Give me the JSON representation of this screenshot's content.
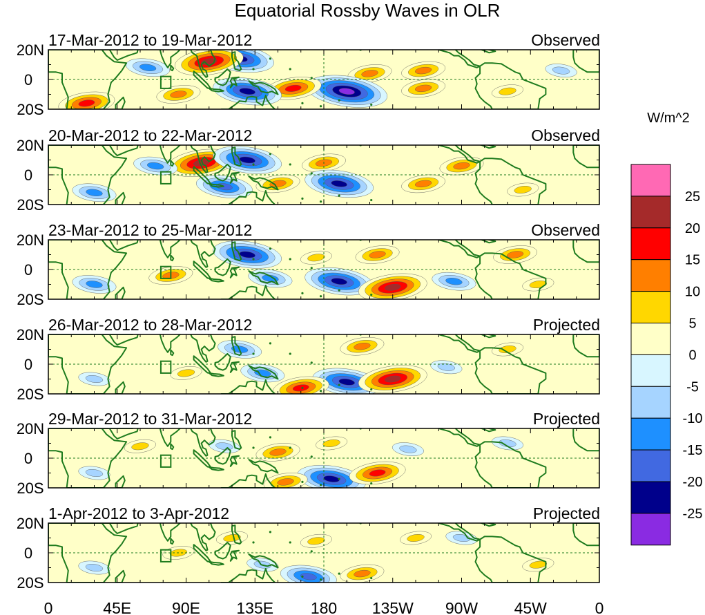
{
  "chart_data": {
    "type": "heatmap",
    "title": "Equatorial Rossby Waves in OLR",
    "units_label": "W/m^2",
    "x_ticks": [
      "0",
      "45E",
      "90E",
      "135E",
      "180",
      "135W",
      "90W",
      "45W",
      "0"
    ],
    "y_ticks": [
      "20N",
      "0",
      "20S"
    ],
    "colorbar": {
      "tick_labels": [
        "25",
        "20",
        "15",
        "10",
        "5",
        "0",
        "-5",
        "-10",
        "-15",
        "-20",
        "-25"
      ],
      "colors": [
        "#ff69b4",
        "#a52a2a",
        "#ff0000",
        "#ff7f00",
        "#ffd700",
        "#ffffc8",
        "#d8f6ff",
        "#a6d4ff",
        "#1e90ff",
        "#4169e1",
        "#00008b",
        "#8a2be2"
      ]
    },
    "panels": [
      {
        "date_range": "17-Mar-2012 to 19-Mar-2012",
        "status": "Observed",
        "anomalies": [
          {
            "lon": 125,
            "lat": 14,
            "value": -20
          },
          {
            "lon": 105,
            "lat": 12,
            "value": 20
          },
          {
            "lon": 210,
            "lat": 4,
            "value": 10
          },
          {
            "lon": 245,
            "lat": 6,
            "value": 10
          },
          {
            "lon": 195,
            "lat": -8,
            "value": -25
          },
          {
            "lon": 160,
            "lat": -6,
            "value": 15
          },
          {
            "lon": 245,
            "lat": -6,
            "value": 10
          },
          {
            "lon": 130,
            "lat": -8,
            "value": -20
          },
          {
            "lon": 65,
            "lat": 8,
            "value": -10
          },
          {
            "lon": 25,
            "lat": -16,
            "value": 15
          },
          {
            "lon": 85,
            "lat": -10,
            "value": 10
          },
          {
            "lon": 300,
            "lat": -8,
            "value": 5
          },
          {
            "lon": 335,
            "lat": 6,
            "value": -5
          }
        ]
      },
      {
        "date_range": "20-Mar-2012 to 22-Mar-2012",
        "status": "Observed",
        "anomalies": [
          {
            "lon": 100,
            "lat": 8,
            "value": 20
          },
          {
            "lon": 130,
            "lat": 10,
            "value": -20
          },
          {
            "lon": 180,
            "lat": 8,
            "value": 10
          },
          {
            "lon": 270,
            "lat": 6,
            "value": 10
          },
          {
            "lon": 190,
            "lat": -6,
            "value": -20
          },
          {
            "lon": 245,
            "lat": -6,
            "value": 10
          },
          {
            "lon": 115,
            "lat": -8,
            "value": -15
          },
          {
            "lon": 70,
            "lat": 6,
            "value": -10
          },
          {
            "lon": 30,
            "lat": -12,
            "value": -10
          },
          {
            "lon": 150,
            "lat": -6,
            "value": 10
          },
          {
            "lon": 310,
            "lat": -10,
            "value": 5
          }
        ]
      },
      {
        "date_range": "23-Mar-2012 to 25-Mar-2012",
        "status": "Observed",
        "anomalies": [
          {
            "lon": 130,
            "lat": 10,
            "value": -20
          },
          {
            "lon": 175,
            "lat": 8,
            "value": 5
          },
          {
            "lon": 215,
            "lat": 10,
            "value": 10
          },
          {
            "lon": 305,
            "lat": 10,
            "value": 10
          },
          {
            "lon": 190,
            "lat": -8,
            "value": -20
          },
          {
            "lon": 225,
            "lat": -12,
            "value": 20
          },
          {
            "lon": 145,
            "lat": -6,
            "value": -10
          },
          {
            "lon": 80,
            "lat": -4,
            "value": 10
          },
          {
            "lon": 30,
            "lat": -10,
            "value": -10
          },
          {
            "lon": 265,
            "lat": -8,
            "value": -10
          },
          {
            "lon": 320,
            "lat": -10,
            "value": 5
          }
        ]
      },
      {
        "date_range": "26-Mar-2012 to 28-Mar-2012",
        "status": "Projected",
        "anomalies": [
          {
            "lon": 195,
            "lat": -12,
            "value": -20
          },
          {
            "lon": 225,
            "lat": -10,
            "value": 20
          },
          {
            "lon": 165,
            "lat": -16,
            "value": 15
          },
          {
            "lon": 205,
            "lat": 12,
            "value": 10
          },
          {
            "lon": 125,
            "lat": 10,
            "value": -10
          },
          {
            "lon": 300,
            "lat": 10,
            "value": 5
          },
          {
            "lon": 140,
            "lat": -6,
            "value": -10
          },
          {
            "lon": 30,
            "lat": -10,
            "value": -5
          },
          {
            "lon": 90,
            "lat": -6,
            "value": 5
          },
          {
            "lon": 260,
            "lat": -2,
            "value": -5
          }
        ]
      },
      {
        "date_range": "29-Mar-2012 to 31-Mar-2012",
        "status": "Projected",
        "anomalies": [
          {
            "lon": 185,
            "lat": -14,
            "value": -20
          },
          {
            "lon": 215,
            "lat": -10,
            "value": 15
          },
          {
            "lon": 155,
            "lat": -16,
            "value": 10
          },
          {
            "lon": 150,
            "lat": 4,
            "value": 10
          },
          {
            "lon": 185,
            "lat": 10,
            "value": 5
          },
          {
            "lon": 115,
            "lat": 8,
            "value": -5
          },
          {
            "lon": 235,
            "lat": 6,
            "value": -5
          },
          {
            "lon": 300,
            "lat": 10,
            "value": -5
          },
          {
            "lon": 30,
            "lat": -10,
            "value": -5
          },
          {
            "lon": 60,
            "lat": 8,
            "value": 5
          }
        ]
      },
      {
        "date_range": "1-Apr-2012 to 3-Apr-2012",
        "status": "Projected",
        "anomalies": [
          {
            "lon": 170,
            "lat": -16,
            "value": -15
          },
          {
            "lon": 205,
            "lat": -14,
            "value": 10
          },
          {
            "lon": 140,
            "lat": -8,
            "value": -5
          },
          {
            "lon": 120,
            "lat": 10,
            "value": 5
          },
          {
            "lon": 175,
            "lat": 8,
            "value": 5
          },
          {
            "lon": 240,
            "lat": 10,
            "value": 5
          },
          {
            "lon": 270,
            "lat": 10,
            "value": -5
          },
          {
            "lon": 85,
            "lat": 0,
            "value": 5
          },
          {
            "lon": 30,
            "lat": -10,
            "value": -5
          },
          {
            "lon": 320,
            "lat": -8,
            "value": 5
          }
        ]
      }
    ]
  }
}
